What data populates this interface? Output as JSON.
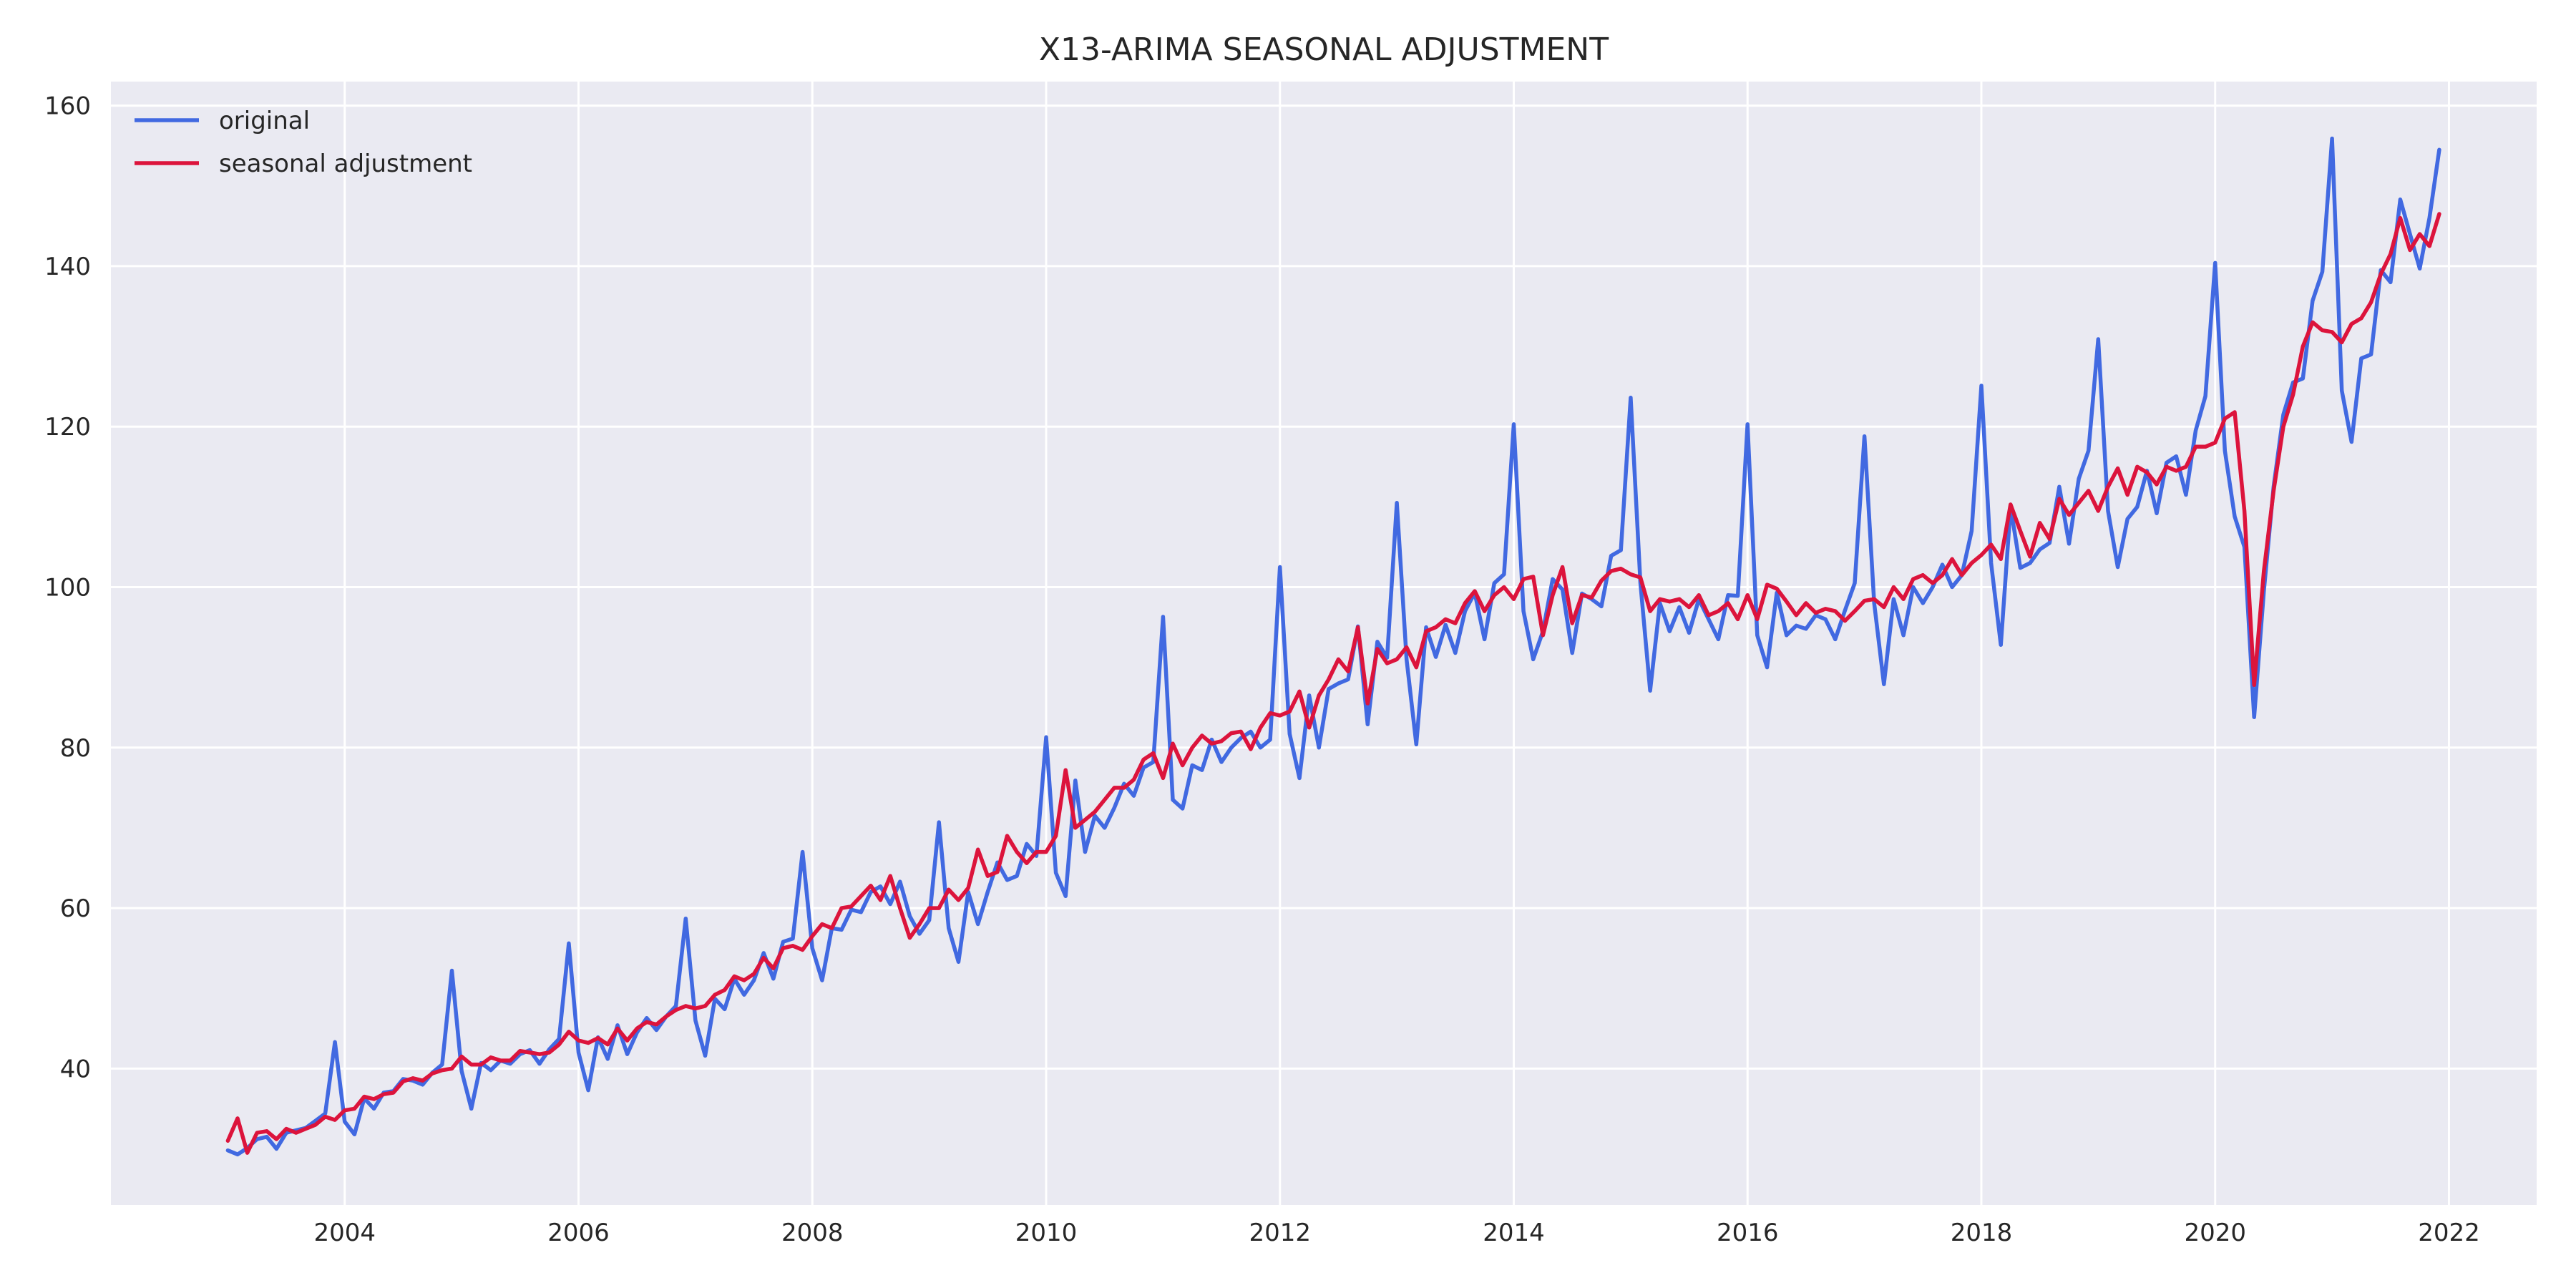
{
  "chart_data": {
    "type": "line",
    "title": "X13-ARIMA SEASONAL ADJUSTMENT",
    "xlabel": "",
    "ylabel": "",
    "x_start": "2003-01",
    "x_end": "2021-11",
    "frequency": "monthly",
    "xlim": [
      "2002-01",
      "2022-10"
    ],
    "ylim": [
      23,
      163
    ],
    "x_ticks": [
      "2004",
      "2006",
      "2008",
      "2010",
      "2012",
      "2014",
      "2016",
      "2018",
      "2020",
      "2022"
    ],
    "y_ticks": [
      40,
      60,
      80,
      100,
      120,
      140,
      160
    ],
    "grid": true,
    "legend_position": "top-left",
    "series": [
      {
        "name": "original",
        "color": "#4169e1",
        "values": [
          29.8,
          29.3,
          30.1,
          31.2,
          31.5,
          30.0,
          32.0,
          32.3,
          32.6,
          33.5,
          34.4,
          43.3,
          33.4,
          31.8,
          36.3,
          35.0,
          37.0,
          37.2,
          38.7,
          38.5,
          38.0,
          39.5,
          40.5,
          52.2,
          39.7,
          35.0,
          40.7,
          39.8,
          41.0,
          40.6,
          41.8,
          42.3,
          40.6,
          42.4,
          43.7,
          55.6,
          42.0,
          37.3,
          43.9,
          41.2,
          45.4,
          41.8,
          44.5,
          46.3,
          44.8,
          46.5,
          47.8,
          58.7,
          46.0,
          41.6,
          48.7,
          47.4,
          51.2,
          49.2,
          51.0,
          54.4,
          51.2,
          55.8,
          56.2,
          67.0,
          55.0,
          51.0,
          57.5,
          57.3,
          59.8,
          59.5,
          62.0,
          62.7,
          60.5,
          63.3,
          59.0,
          56.8,
          58.5,
          70.7,
          57.5,
          53.3,
          62.0,
          58.0,
          62.0,
          65.7,
          63.5,
          64.0,
          68.0,
          66.5,
          81.3,
          64.4,
          61.5,
          75.9,
          67.0,
          71.5,
          70.0,
          72.5,
          75.5,
          74.0,
          77.5,
          78.2,
          96.3,
          73.5,
          72.4,
          77.8,
          77.2,
          81.0,
          78.2,
          80.0,
          81.2,
          82.0,
          80.0,
          81.0,
          102.5,
          81.7,
          76.2,
          86.5,
          80.0,
          87.3,
          88.0,
          88.5,
          95.1,
          82.9,
          93.2,
          91.2,
          110.5,
          91.0,
          80.4,
          95.0,
          91.3,
          95.3,
          91.8,
          97.0,
          99.3,
          93.5,
          100.5,
          101.6,
          120.3,
          97.0,
          91.0,
          94.5,
          101.0,
          99.7,
          91.8,
          99.2,
          98.5,
          97.6,
          103.9,
          104.6,
          123.6,
          100.5,
          87.1,
          98.0,
          94.5,
          97.5,
          94.3,
          98.5,
          96.0,
          93.5,
          99.0,
          98.9,
          120.3,
          94.0,
          90.0,
          99.3,
          94.0,
          95.2,
          94.8,
          96.5,
          96.0,
          93.5,
          97.1,
          100.5,
          118.8,
          98.0,
          87.9,
          98.5,
          94.0,
          100.0,
          98.0,
          100.0,
          102.8,
          100.0,
          101.5,
          107.0,
          125.1,
          103.0,
          92.8,
          110.0,
          102.4,
          103.0,
          104.7,
          105.5,
          112.5,
          105.4,
          113.5,
          117.0,
          130.9,
          109.5,
          102.5,
          108.5,
          110.0,
          114.5,
          109.2,
          115.5,
          116.3,
          111.5,
          119.5,
          123.8,
          140.4,
          117.0,
          108.8,
          105.0,
          83.8,
          99.5,
          112.5,
          121.5,
          125.5,
          126.0,
          135.7,
          139.3,
          155.9,
          124.5,
          118.1,
          128.5,
          129.0,
          139.5,
          138.0,
          148.3,
          144.0,
          139.7,
          146.0,
          154.5
        ]
      },
      {
        "name": "seasonal adjustment",
        "color": "#dc143c",
        "values": [
          31.0,
          33.8,
          29.5,
          32.0,
          32.2,
          31.2,
          32.5,
          32.0,
          32.5,
          33.0,
          34.0,
          33.6,
          34.8,
          35.0,
          36.5,
          36.2,
          36.8,
          37.0,
          38.4,
          38.8,
          38.5,
          39.4,
          39.8,
          40.0,
          41.5,
          40.5,
          40.5,
          41.4,
          41.0,
          41.0,
          42.2,
          42.0,
          41.8,
          42.0,
          43.0,
          44.6,
          43.5,
          43.2,
          43.8,
          43.0,
          45.0,
          43.5,
          45.0,
          45.8,
          45.5,
          46.5,
          47.3,
          47.8,
          47.5,
          47.8,
          49.2,
          49.8,
          51.5,
          51.0,
          51.8,
          53.8,
          52.5,
          55.0,
          55.3,
          54.8,
          56.5,
          58.0,
          57.5,
          60.0,
          60.2,
          61.5,
          62.8,
          61.0,
          64.0,
          60.0,
          56.3,
          58.0,
          60.0,
          60.0,
          62.3,
          61.0,
          62.5,
          67.3,
          64.0,
          64.5,
          69.0,
          67.0,
          65.6,
          67.0,
          67.0,
          69.0,
          77.2,
          70.0,
          71.0,
          72.0,
          73.5,
          75.0,
          75.0,
          76.0,
          78.5,
          79.3,
          76.2,
          80.5,
          77.8,
          80.0,
          81.5,
          80.5,
          80.8,
          81.8,
          82.0,
          79.8,
          82.5,
          84.3,
          84.0,
          84.5,
          87.0,
          82.5,
          86.5,
          88.5,
          91.0,
          89.5,
          95.0,
          85.5,
          92.3,
          90.5,
          91.0,
          92.5,
          90.0,
          94.5,
          95.0,
          96.0,
          95.5,
          98.0,
          99.5,
          97.0,
          99.0,
          100.0,
          98.5,
          101.0,
          101.3,
          94.0,
          99.0,
          102.5,
          95.5,
          99.0,
          98.7,
          100.8,
          102.0,
          102.3,
          101.6,
          101.2,
          97.0,
          98.5,
          98.2,
          98.5,
          97.5,
          99.0,
          96.5,
          97.0,
          98.0,
          96.0,
          99.0,
          96.0,
          100.3,
          99.8,
          98.2,
          96.5,
          98.0,
          96.8,
          97.3,
          97.0,
          95.8,
          97.0,
          98.3,
          98.5,
          97.5,
          100.0,
          98.5,
          101.0,
          101.5,
          100.5,
          101.5,
          103.5,
          101.5,
          103.0,
          104.0,
          105.3,
          103.5,
          110.3,
          107.0,
          103.8,
          108.0,
          106.0,
          111.0,
          109.0,
          110.5,
          112.0,
          109.5,
          112.5,
          114.8,
          111.5,
          115.0,
          114.3,
          112.8,
          115.0,
          114.5,
          115.0,
          117.5,
          117.5,
          118.0,
          121.0,
          121.8,
          109.5,
          87.8,
          102.0,
          112.0,
          120.0,
          124.0,
          130.0,
          133.0,
          132.0,
          131.8,
          130.5,
          132.8,
          133.5,
          135.5,
          139.0,
          141.5,
          146.0,
          142.0,
          144.0,
          142.5,
          146.5
        ]
      }
    ]
  }
}
